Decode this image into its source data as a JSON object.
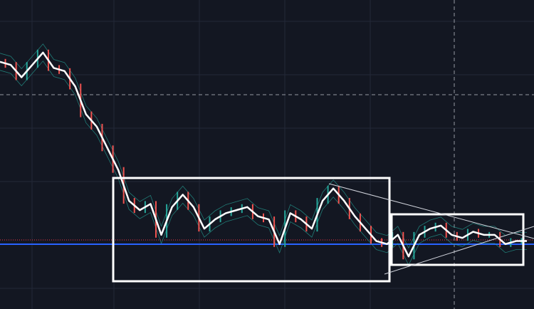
{
  "chart_data": {
    "type": "line",
    "ylim": [
      0,
      100
    ],
    "grid": true,
    "series": [
      {
        "color": "#ffffff",
        "values": [
          80,
          79,
          75,
          79,
          83,
          78,
          77,
          72,
          63,
          59,
          52,
          45,
          35,
          32,
          34,
          24,
          33,
          37,
          33,
          26,
          29,
          31,
          32,
          33,
          30,
          29,
          21,
          31,
          29,
          26,
          35,
          39,
          35,
          30,
          26,
          22,
          21,
          24,
          17,
          24,
          26,
          27,
          24,
          23,
          25,
          24,
          24,
          21,
          22,
          22
        ]
      }
    ]
  }
}
